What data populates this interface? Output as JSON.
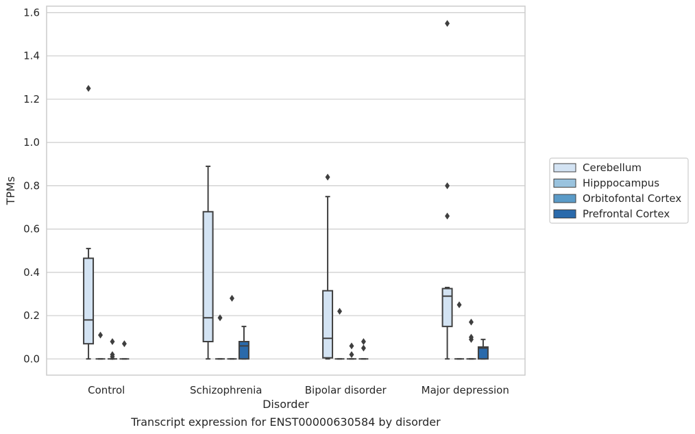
{
  "chart_data": {
    "type": "box",
    "caption": "Transcript expression for ENST00000630584 by disorder",
    "xlabel": "Disorder",
    "ylabel": "TPMs",
    "ylim": [
      -0.075,
      1.63
    ],
    "yticks": [
      0.0,
      0.2,
      0.4,
      0.6,
      0.8,
      1.0,
      1.2,
      1.4,
      1.6
    ],
    "ytick_labels": [
      "0.0",
      "0.2",
      "0.4",
      "0.6",
      "0.8",
      "1.0",
      "1.2",
      "1.4",
      "1.6"
    ],
    "categories": [
      "Control",
      "Schizophrenia",
      "Bipolar disorder",
      "Major depression"
    ],
    "grid": "horizontal",
    "legend_position": "right",
    "series": [
      {
        "name": "Cerebellum",
        "color": "#d3e3f3",
        "boxes": [
          {
            "whislo": 0.0,
            "q1": 0.07,
            "med": 0.18,
            "q3": 0.465,
            "whishi": 0.51,
            "fliers": [
              1.25
            ]
          },
          {
            "whislo": 0.0,
            "q1": 0.08,
            "med": 0.19,
            "q3": 0.68,
            "whishi": 0.89,
            "fliers": []
          },
          {
            "whislo": 0.0,
            "q1": 0.005,
            "med": 0.095,
            "q3": 0.315,
            "whishi": 0.75,
            "fliers": [
              0.84
            ]
          },
          {
            "whislo": 0.0,
            "q1": 0.15,
            "med": 0.29,
            "q3": 0.325,
            "whishi": 0.33,
            "fliers": [
              0.66,
              0.8,
              1.55
            ]
          }
        ]
      },
      {
        "name": "Hipppocampus",
        "color": "#9ac3de",
        "boxes": [
          {
            "whislo": 0.0,
            "q1": 0.0,
            "med": 0.0,
            "q3": 0.0,
            "whishi": 0.0,
            "fliers": [
              0.11
            ]
          },
          {
            "whislo": 0.0,
            "q1": 0.0,
            "med": 0.0,
            "q3": 0.0,
            "whishi": 0.0,
            "fliers": [
              0.19
            ]
          },
          {
            "whislo": 0.0,
            "q1": 0.0,
            "med": 0.0,
            "q3": 0.0,
            "whishi": 0.0,
            "fliers": [
              0.22
            ]
          },
          {
            "whislo": 0.0,
            "q1": 0.0,
            "med": 0.0,
            "q3": 0.0,
            "whishi": 0.0,
            "fliers": [
              0.25
            ]
          }
        ]
      },
      {
        "name": "Orbitofontal Cortex",
        "color": "#5b9bc8",
        "boxes": [
          {
            "whislo": 0.0,
            "q1": 0.0,
            "med": 0.0,
            "q3": 0.0,
            "whishi": 0.0,
            "fliers": [
              0.01,
              0.02,
              0.08
            ]
          },
          {
            "whislo": 0.0,
            "q1": 0.0,
            "med": 0.0,
            "q3": 0.0,
            "whishi": 0.0,
            "fliers": [
              0.28
            ]
          },
          {
            "whislo": 0.0,
            "q1": 0.0,
            "med": 0.0,
            "q3": 0.0,
            "whishi": 0.0,
            "fliers": [
              0.02,
              0.06
            ]
          },
          {
            "whislo": 0.0,
            "q1": 0.0,
            "med": 0.0,
            "q3": 0.0,
            "whishi": 0.0,
            "fliers": [
              0.09,
              0.1,
              0.17
            ]
          }
        ]
      },
      {
        "name": "Prefrontal Cortex",
        "color": "#2a6aab",
        "boxes": [
          {
            "whislo": 0.0,
            "q1": 0.0,
            "med": 0.0,
            "q3": 0.0,
            "whishi": 0.0,
            "fliers": [
              0.07
            ]
          },
          {
            "whislo": 0.0,
            "q1": 0.0,
            "med": 0.06,
            "q3": 0.08,
            "whishi": 0.15,
            "fliers": []
          },
          {
            "whislo": 0.0,
            "q1": 0.0,
            "med": 0.0,
            "q3": 0.0,
            "whishi": 0.0,
            "fliers": [
              0.05,
              0.08
            ]
          },
          {
            "whislo": 0.0,
            "q1": 0.0,
            "med": 0.05,
            "q3": 0.055,
            "whishi": 0.09,
            "fliers": []
          }
        ]
      }
    ],
    "colors": {
      "axes_edge": "#cccccc",
      "grid": "#cccccc",
      "box_line": "#3f3f3f"
    }
  }
}
